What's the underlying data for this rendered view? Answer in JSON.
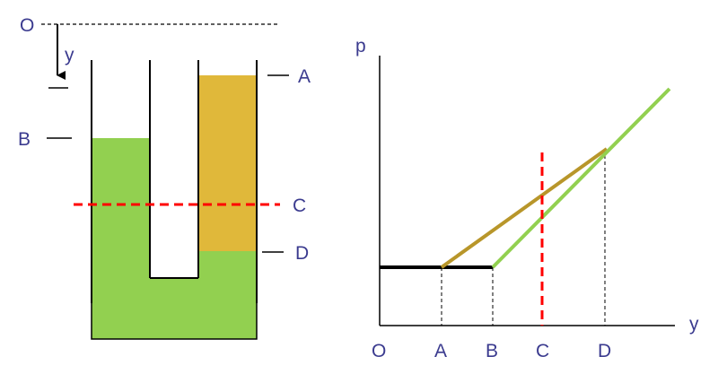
{
  "colors": {
    "lower_liquid": "#92d050",
    "upper_liquid": "#e0b83a",
    "pressure_upper_line": "#b8962a",
    "pressure_lower_line": "#92d050",
    "cut_line": "#ff0000",
    "label": "#3b3b8f",
    "outline": "#000000"
  },
  "left_diagram": {
    "origin_label": "O",
    "depth_label": "y",
    "levels": {
      "A": "A",
      "B": "B",
      "C": "C",
      "D": "D"
    }
  },
  "right_graph": {
    "y_axis_label": "p",
    "x_axis_label": "y",
    "tick_labels": [
      "O",
      "A",
      "B",
      "C",
      "D"
    ]
  }
}
